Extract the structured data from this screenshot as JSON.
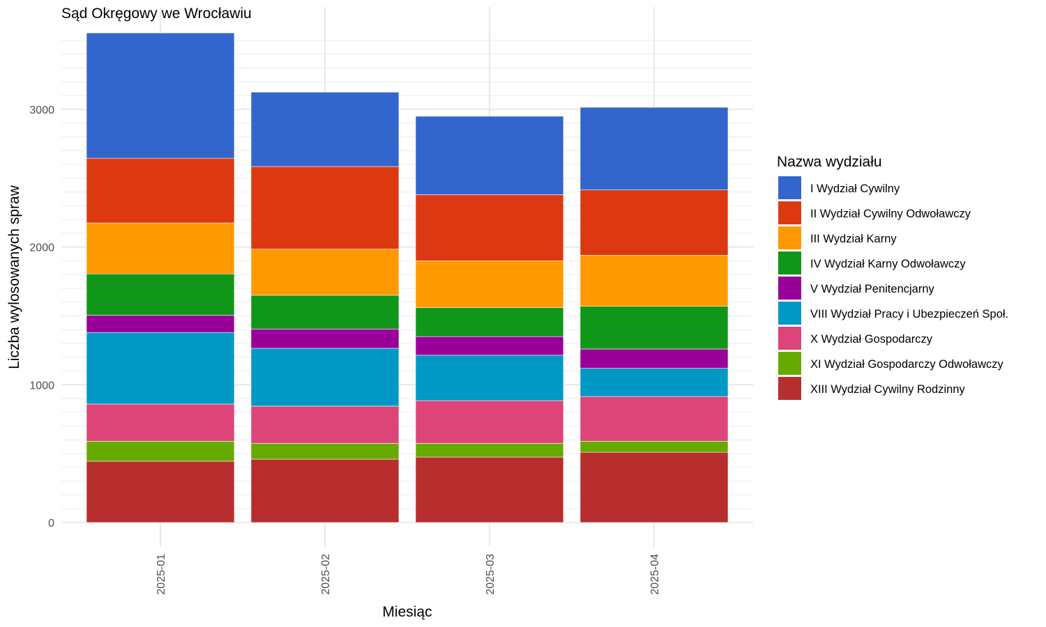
{
  "chart_data": {
    "type": "bar",
    "stacked": true,
    "title": "Sąd Okręgowy we Wrocławiu",
    "xlabel": "Miesiąc",
    "ylabel": "Liczba wylosowanych spraw",
    "ylim": [
      0,
      3570
    ],
    "yticks": [
      0,
      1000,
      2000,
      3000
    ],
    "ytick_labels": [
      "0",
      "1000",
      "2000",
      "3000"
    ],
    "grid": true,
    "legend_title": "Nazwa wydziału",
    "legend_position": "right",
    "categories": [
      "2025-01",
      "2025-02",
      "2025-03",
      "2025-04"
    ],
    "series": [
      {
        "name": "I Wydział Cywilny",
        "color": "#3366cc",
        "values": [
          910,
          540,
          570,
          600
        ]
      },
      {
        "name": "II Wydział Cywilny Odwoławczy",
        "color": "#dc3912",
        "values": [
          470,
          600,
          480,
          475
        ]
      },
      {
        "name": "III Wydział Karny",
        "color": "#ff9900",
        "values": [
          370,
          335,
          340,
          370
        ]
      },
      {
        "name": "IV Wydział Karny Odwoławczy",
        "color": "#109618",
        "values": [
          300,
          245,
          210,
          310
        ]
      },
      {
        "name": "V Wydział Penitencjarny",
        "color": "#990099",
        "values": [
          125,
          140,
          135,
          140
        ]
      },
      {
        "name": "VIII Wydział Pracy i Ubezpieczeń Społ.",
        "color": "#0099c6",
        "values": [
          520,
          420,
          330,
          205
        ]
      },
      {
        "name": "X Wydział Gospodarczy",
        "color": "#dd4477",
        "values": [
          270,
          270,
          310,
          325
        ]
      },
      {
        "name": "XI Wydział Gospodarczy Odwoławczy",
        "color": "#66aa00",
        "values": [
          145,
          115,
          100,
          80
        ]
      },
      {
        "name": "XIII Wydział Cywilny Rodzinny",
        "color": "#b82e2e",
        "values": [
          445,
          460,
          475,
          510
        ]
      }
    ]
  }
}
